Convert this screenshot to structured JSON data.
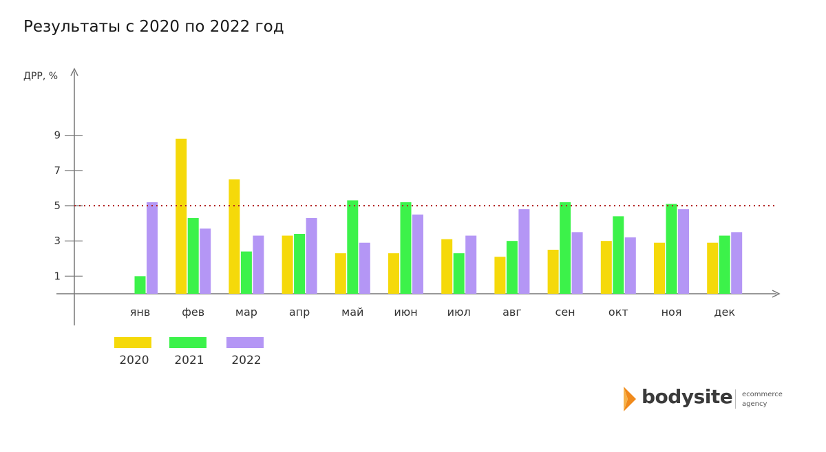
{
  "title": "Результаты с 2020 по 2022 год",
  "colors": {
    "2020": "#f5d90a",
    "2021": "#3cf24a",
    "2022": "#b496f5",
    "threshold": "#b22222",
    "axis": "#777777"
  },
  "chart_data": {
    "type": "bar",
    "title": "Результаты с 2020 по 2022 год",
    "xlabel": "",
    "ylabel": "ДРР, %",
    "categories": [
      "янв",
      "фев",
      "мар",
      "апр",
      "май",
      "июн",
      "июл",
      "авг",
      "сен",
      "окт",
      "ноя",
      "дек"
    ],
    "yticks": [
      1,
      3,
      5,
      7,
      9
    ],
    "ylim": [
      0,
      12
    ],
    "grid": false,
    "legend_position": "bottom-left",
    "threshold": {
      "value": 5,
      "style": "dotted"
    },
    "series": [
      {
        "name": "2020",
        "color": "#f5d90a",
        "values": [
          0,
          8.8,
          6.5,
          3.3,
          2.3,
          2.3,
          3.1,
          2.1,
          2.5,
          3.0,
          2.9,
          2.9
        ]
      },
      {
        "name": "2021",
        "color": "#3cf24a",
        "values": [
          1.0,
          4.3,
          2.4,
          3.4,
          5.3,
          5.2,
          2.3,
          3.0,
          5.2,
          4.4,
          5.1,
          3.3
        ]
      },
      {
        "name": "2022",
        "color": "#b496f5",
        "values": [
          5.2,
          3.7,
          3.3,
          4.3,
          2.9,
          4.5,
          3.3,
          4.8,
          3.5,
          3.2,
          4.8,
          3.5
        ]
      }
    ]
  },
  "logo": {
    "brand": "bodysite",
    "tagline_1": "ecommerce",
    "tagline_2": "agency"
  }
}
